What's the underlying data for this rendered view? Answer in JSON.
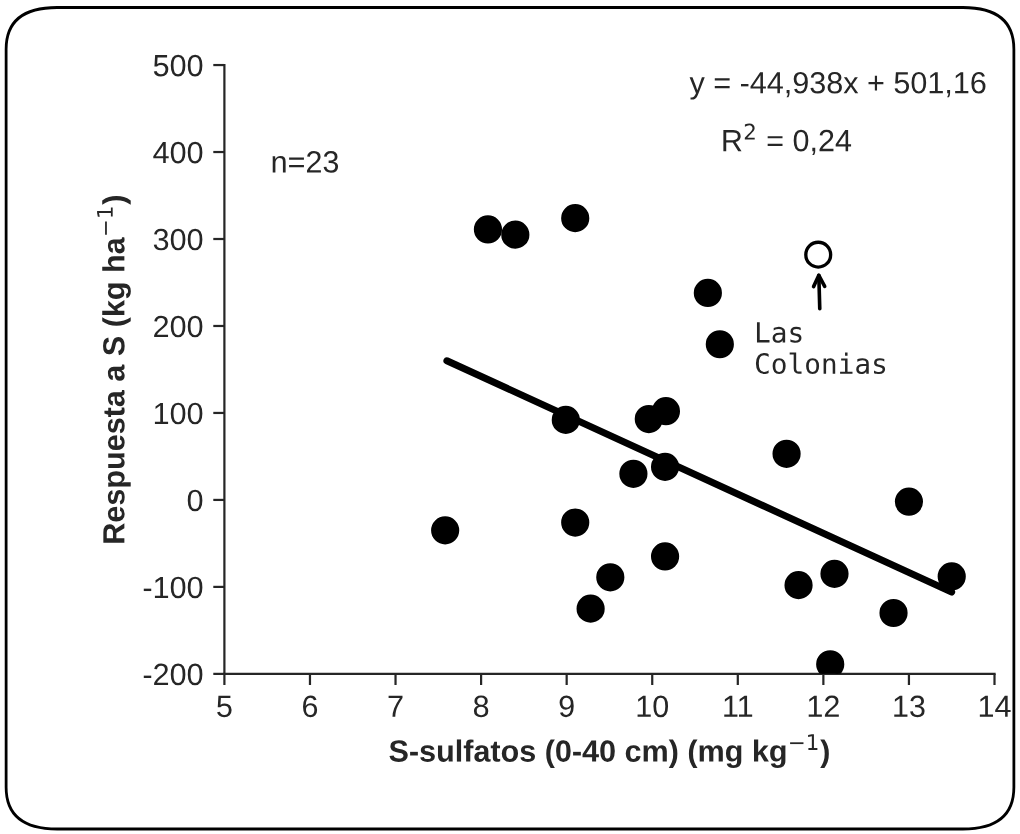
{
  "chart_data": {
    "type": "scatter",
    "xlabel": "S-sulfatos (0-40 cm) (mg kg$^{−1}$)",
    "ylabel": "Respuesta a S (kg ha$^{−1}$)",
    "xlim": [
      5,
      14
    ],
    "xticks": [
      5,
      6,
      7,
      8,
      9,
      10,
      11,
      12,
      13,
      14
    ],
    "ylim": [
      -200,
      500
    ],
    "yticks": [
      {
        "value": -200,
        "label": "-200"
      },
      {
        "value": -100,
        "label": "-100"
      },
      0,
      100,
      200,
      300,
      400,
      500
    ],
    "grid": false,
    "legend": false,
    "marker": "circle",
    "series": [
      {
        "color": "#000000",
        "x": [
          8.08,
          8.4,
          9.1,
          8.99,
          7.58,
          9.1,
          9.51,
          9.28,
          10.15,
          9.78,
          10.15,
          9.96,
          10.16,
          10.65,
          10.79,
          11.57,
          11.71,
          12.13,
          12.08,
          12.82,
          13.0,
          13.5
        ],
        "values": [
          311,
          305,
          324,
          92,
          -35,
          -26,
          -89,
          -125,
          -65,
          30,
          38,
          93,
          102,
          238,
          179,
          53,
          -98,
          -85,
          -189,
          -130,
          -2,
          -88
        ]
      },
      {
        "color": "#ffffff",
        "x": [
          11.94
        ],
        "values": [
          282
        ]
      },
      {
        "type": "line",
        "color": "#000000",
        "marker": "none",
        "x": [
          7.6,
          13.5
        ],
        "values": [
          160,
          -106
        ]
      }
    ],
    "annotations": [
      "y = -44,938x + 501,16",
      "R$^{2}$ = 0,24",
      "n=23",
      {
        "text": "Las\nColonias",
        "x": 11.94,
        "y": 282
      }
    ]
  }
}
